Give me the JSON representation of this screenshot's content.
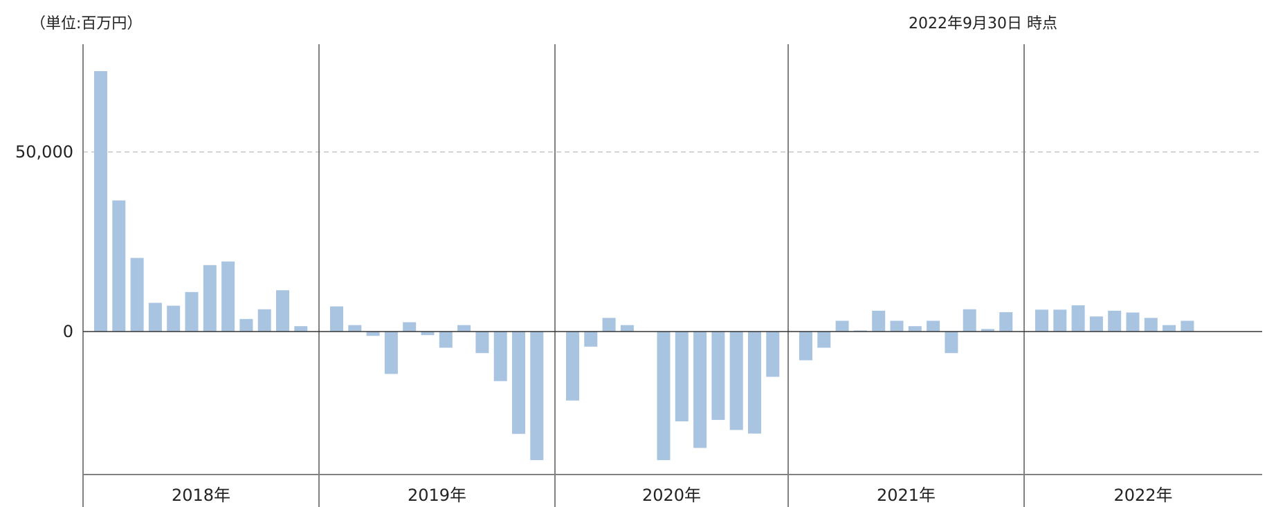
{
  "header": {
    "unit": "（単位:百万円）",
    "as_of": "2022年9月30日 時点"
  },
  "colors": {
    "bar": "#a9c4e0",
    "axis": "#333333",
    "divider": "#808080",
    "gridline": "#bbbbbb"
  },
  "chart_data": {
    "type": "bar",
    "title": "",
    "xlabel": "",
    "ylabel": "",
    "ylim": [
      -40000,
      72000
    ],
    "yticks": [
      0,
      50000
    ],
    "ytick_labels": [
      "0",
      "50,000"
    ],
    "gridlines": [
      50000
    ],
    "groups": [
      {
        "label": "2018年",
        "values": [
          72500,
          36500,
          20500,
          8000,
          7200,
          11000,
          18500,
          19500,
          3500,
          6200,
          11500,
          1500
        ]
      },
      {
        "label": "2019年",
        "values": [
          7000,
          1800,
          -1200,
          -11800,
          2600,
          -1000,
          -4500,
          1800,
          -6000,
          -13800,
          -28500,
          -35800
        ]
      },
      {
        "label": "2020年",
        "values": [
          -19200,
          -4200,
          3800,
          1800,
          null,
          -35800,
          -25000,
          -32400,
          -24600,
          -27400,
          -28400,
          -12600
        ]
      },
      {
        "label": "2021年",
        "values": [
          -8000,
          -4500,
          3000,
          300,
          5800,
          3000,
          1500,
          3000,
          -6000,
          6200,
          700,
          5400
        ]
      },
      {
        "label": "2022年",
        "values": [
          6100,
          6100,
          7300,
          4200,
          5800,
          5300,
          3800,
          1800,
          3000,
          null,
          null,
          null
        ]
      }
    ]
  }
}
